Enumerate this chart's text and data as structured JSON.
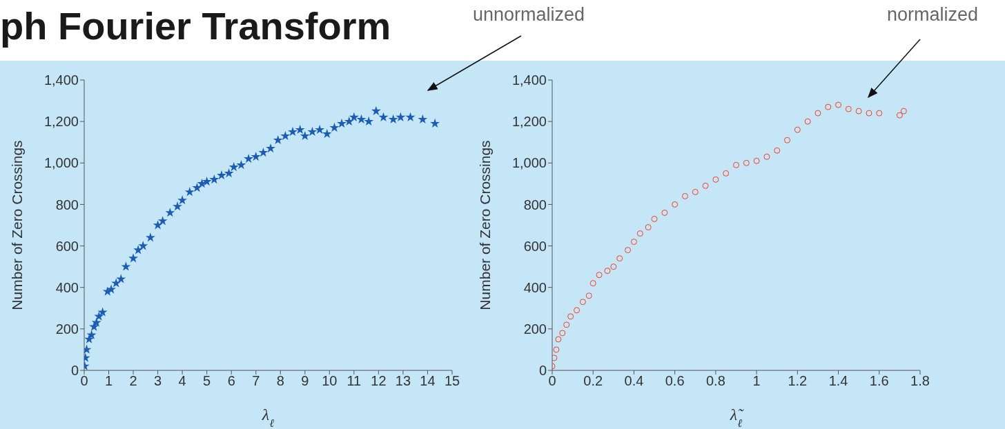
{
  "chart_data": [
    {
      "type": "scatter",
      "title": "ph Fourier Transform",
      "annotations": [
        "unnormalized"
      ],
      "xlabel": "λ$_{ℓ}$",
      "ylabel": "Number of Zero Crossings",
      "marker": "star",
      "xlim": [
        0,
        15
      ],
      "xticks": [
        0,
        1,
        2,
        3,
        4,
        5,
        6,
        7,
        8,
        9,
        10,
        11,
        12,
        13,
        14,
        15
      ],
      "ylim": [
        0,
        1400
      ],
      "yticks": [
        0,
        {
          "value": 200,
          "label": "200"
        },
        {
          "value": 400,
          "label": "400"
        },
        {
          "value": 600,
          "label": "600"
        },
        {
          "value": 800,
          "label": "800"
        },
        {
          "value": 1000,
          "label": "1,000"
        },
        {
          "value": 1200,
          "label": "1,200"
        },
        {
          "value": 1400,
          "label": "1,400"
        }
      ],
      "series": [
        {
          "color": "#1a5cb8",
          "x": [
            0.02,
            0.05,
            0.1,
            0.2,
            0.3,
            0.4,
            0.5,
            0.6,
            0.75,
            0.95,
            1.1,
            1.3,
            1.5,
            1.7,
            2.0,
            2.2,
            2.4,
            2.7,
            3.0,
            3.2,
            3.5,
            3.8,
            4.0,
            4.3,
            4.6,
            4.8,
            5.0,
            5.3,
            5.6,
            5.9,
            6.1,
            6.4,
            6.7,
            7.0,
            7.3,
            7.6,
            7.9,
            8.2,
            8.5,
            8.8,
            9.0,
            9.3,
            9.6,
            9.9,
            10.2,
            10.5,
            10.8,
            11.0,
            11.3,
            11.6,
            11.9,
            12.2,
            12.6,
            12.9,
            13.3,
            13.8,
            14.3
          ],
          "values": [
            20,
            60,
            100,
            150,
            170,
            210,
            230,
            260,
            280,
            380,
            390,
            420,
            440,
            500,
            540,
            580,
            600,
            640,
            700,
            720,
            760,
            790,
            820,
            860,
            880,
            900,
            910,
            920,
            940,
            950,
            980,
            990,
            1020,
            1030,
            1050,
            1070,
            1110,
            1130,
            1150,
            1160,
            1130,
            1150,
            1160,
            1140,
            1170,
            1190,
            1200,
            1220,
            1210,
            1200,
            1250,
            1220,
            1210,
            1220,
            1220,
            1210,
            1190
          ]
        }
      ]
    },
    {
      "type": "scatter",
      "annotations": [
        "normalized"
      ],
      "xlabel": "λ̃$_{ℓ}$",
      "ylabel": "Number of Zero Crossings",
      "marker": "circle",
      "xlim": [
        0,
        1.8
      ],
      "xticks": [
        0,
        0.2,
        0.4,
        0.6,
        0.8,
        1,
        1.2,
        1.4,
        1.6,
        1.8
      ],
      "ylim": [
        0,
        1400
      ],
      "yticks": [
        0,
        {
          "value": 200,
          "label": "200"
        },
        {
          "value": 400,
          "label": "400"
        },
        {
          "value": 600,
          "label": "600"
        },
        {
          "value": 800,
          "label": "800"
        },
        {
          "value": 1000,
          "label": "1,000"
        },
        {
          "value": 1200,
          "label": "1,200"
        },
        {
          "value": 1400,
          "label": "1,400"
        }
      ],
      "series": [
        {
          "color": "#ff3a1f",
          "x": [
            0.0,
            0.01,
            0.02,
            0.03,
            0.05,
            0.07,
            0.09,
            0.12,
            0.15,
            0.18,
            0.2,
            0.23,
            0.27,
            0.3,
            0.33,
            0.37,
            0.4,
            0.43,
            0.47,
            0.5,
            0.55,
            0.6,
            0.65,
            0.7,
            0.75,
            0.8,
            0.85,
            0.9,
            0.95,
            1.0,
            1.05,
            1.1,
            1.15,
            1.2,
            1.25,
            1.3,
            1.35,
            1.4,
            1.45,
            1.5,
            1.55,
            1.6,
            1.7,
            1.72
          ],
          "values": [
            20,
            60,
            100,
            150,
            180,
            220,
            260,
            290,
            330,
            360,
            420,
            460,
            480,
            500,
            540,
            580,
            620,
            660,
            690,
            730,
            760,
            800,
            840,
            860,
            890,
            920,
            950,
            990,
            1000,
            1010,
            1030,
            1060,
            1110,
            1160,
            1200,
            1240,
            1270,
            1280,
            1260,
            1250,
            1240,
            1240,
            1230,
            1250
          ]
        }
      ]
    }
  ]
}
